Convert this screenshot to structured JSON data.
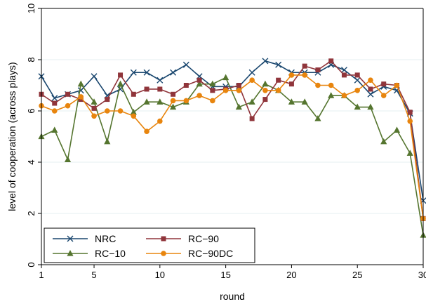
{
  "chart_data": {
    "type": "line",
    "title": "",
    "xlabel": "round",
    "ylabel": "level of cooperation (across plays)",
    "xlim": [
      1,
      30
    ],
    "ylim": [
      0,
      10
    ],
    "x_ticks": [
      1,
      5,
      10,
      15,
      20,
      25,
      30
    ],
    "y_ticks": [
      0,
      2,
      4,
      6,
      8,
      10
    ],
    "grid": "horizontal",
    "legend_position": "bottom-left",
    "x": [
      1,
      2,
      3,
      4,
      5,
      6,
      7,
      8,
      9,
      10,
      11,
      12,
      13,
      14,
      15,
      16,
      17,
      18,
      19,
      20,
      21,
      22,
      23,
      24,
      25,
      26,
      27,
      28,
      29,
      30
    ],
    "series": [
      {
        "name": "NRC",
        "color": "#1a476f",
        "marker": "x",
        "values": [
          7.35,
          6.5,
          6.65,
          6.8,
          7.35,
          6.6,
          6.85,
          7.5,
          7.5,
          7.2,
          7.5,
          7.8,
          7.35,
          6.95,
          6.95,
          6.95,
          7.5,
          7.95,
          7.8,
          7.5,
          7.5,
          7.5,
          7.8,
          7.6,
          7.2,
          6.65,
          6.95,
          6.8,
          5.9,
          2.5
        ]
      },
      {
        "name": "RC−10",
        "color": "#55752f",
        "marker": "triangle",
        "values": [
          5.0,
          5.25,
          4.1,
          7.05,
          6.35,
          4.8,
          7.05,
          5.95,
          6.35,
          6.35,
          6.15,
          6.35,
          7.05,
          7.05,
          7.3,
          6.15,
          6.35,
          7.05,
          6.8,
          6.35,
          6.35,
          5.7,
          6.6,
          6.6,
          6.15,
          6.15,
          4.8,
          5.25,
          4.35,
          1.15
        ]
      },
      {
        "name": "RC−90",
        "color": "#90353b",
        "marker": "square",
        "values": [
          6.65,
          6.3,
          6.65,
          6.45,
          6.1,
          6.45,
          7.4,
          6.65,
          6.85,
          6.85,
          6.65,
          7.0,
          7.2,
          6.8,
          6.85,
          7.0,
          5.7,
          6.45,
          7.2,
          7.05,
          7.75,
          7.6,
          7.95,
          7.4,
          7.4,
          6.85,
          7.05,
          7.0,
          5.95,
          1.8
        ]
      },
      {
        "name": "RC−90DC",
        "color": "#e8850e",
        "marker": "circle",
        "values": [
          6.2,
          6.0,
          6.2,
          6.55,
          5.8,
          6.0,
          6.0,
          5.8,
          5.2,
          5.6,
          6.4,
          6.4,
          6.6,
          6.4,
          6.8,
          6.8,
          7.2,
          6.8,
          6.8,
          7.4,
          7.4,
          7.0,
          7.0,
          6.6,
          6.8,
          7.2,
          6.6,
          7.0,
          5.6,
          1.8
        ]
      }
    ]
  }
}
